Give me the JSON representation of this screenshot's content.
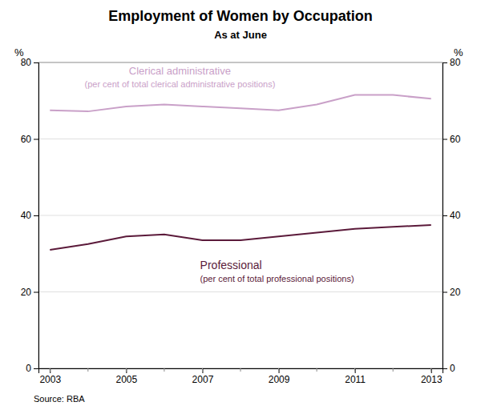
{
  "chart_data": {
    "type": "line",
    "title": "Employment of Women by Occupation",
    "subtitle": "As at June",
    "source": "Source: RBA",
    "x": [
      2003,
      2004,
      2005,
      2006,
      2007,
      2008,
      2009,
      2010,
      2011,
      2012,
      2013
    ],
    "series": [
      {
        "name": "Clerical administrative",
        "note": "(per cent of total clerical administrative positions)",
        "color": "#c9a0c8",
        "values": [
          67.5,
          67.2,
          68.5,
          69.0,
          68.5,
          68.0,
          67.5,
          69.0,
          71.5,
          71.5,
          70.5
        ]
      },
      {
        "name": "Professional",
        "note": "(per cent of total professional positions)",
        "color": "#5b1a3a",
        "values": [
          31.0,
          32.5,
          34.5,
          35.0,
          33.5,
          33.5,
          34.5,
          35.5,
          36.5,
          37.0,
          37.5
        ]
      }
    ],
    "xlim": [
      2002.7,
      2013.3
    ],
    "xticks": [
      2003,
      2005,
      2007,
      2009,
      2011,
      2013
    ],
    "ylim": [
      0,
      80
    ],
    "yticks": [
      0,
      20,
      40,
      60,
      80
    ],
    "y2lim": [
      0,
      80
    ],
    "y2ticks": [
      0,
      20,
      40,
      60,
      80
    ],
    "y_label": "%",
    "y2_label": "%",
    "grid": true
  }
}
